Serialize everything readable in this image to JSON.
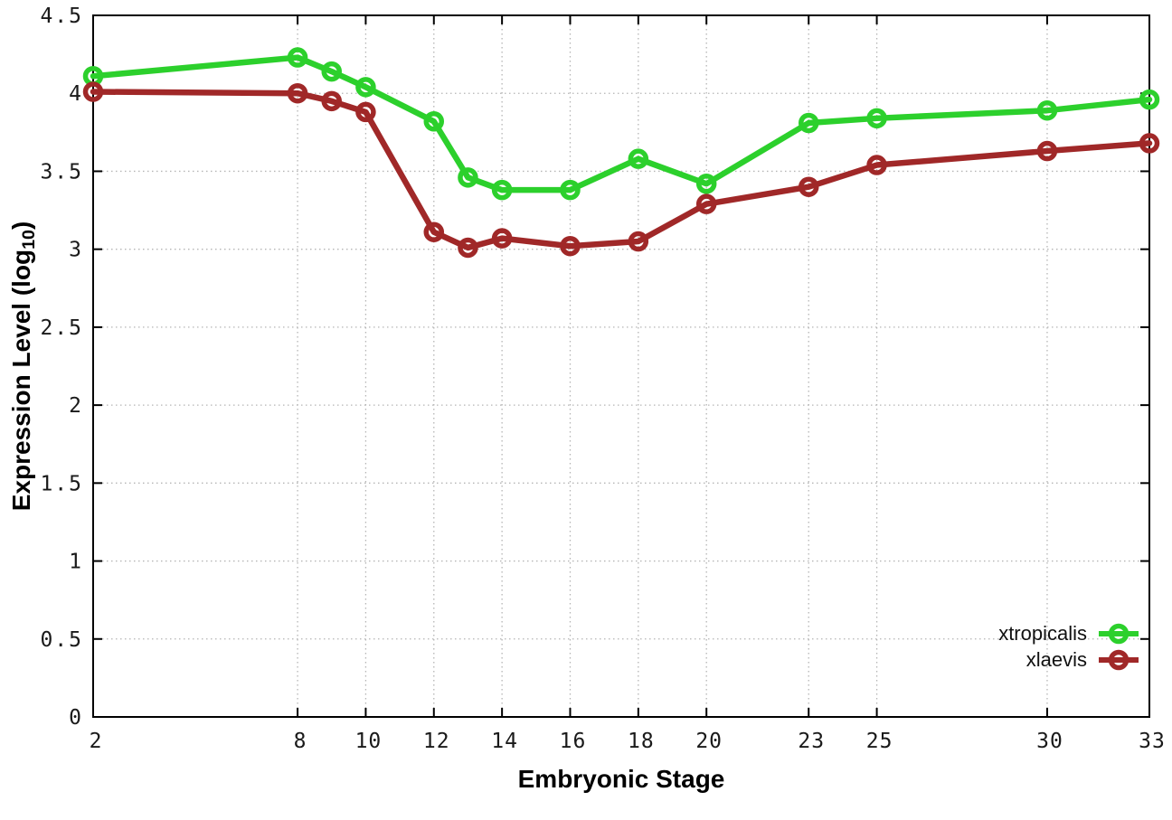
{
  "figure": {
    "background": "#ffffff",
    "border_color": "#000000",
    "grid_color": "#b5b5b5",
    "tick_label_color": "#1a1a1a"
  },
  "chart_data": {
    "type": "line",
    "title": "",
    "xlabel": "Embryonic Stage",
    "ylabel": "Expression Level (log10)",
    "ylabel_parts": {
      "main": "Expression Level (log",
      "sub": "10",
      "close": ")"
    },
    "xlim": [
      2,
      33
    ],
    "ylim": [
      0,
      4.5
    ],
    "grid": true,
    "legend_position": "bottom-right",
    "x": [
      2,
      8,
      9,
      10,
      12,
      13,
      14,
      16,
      18,
      20,
      23,
      25,
      30,
      33
    ],
    "xticks": [
      2,
      8,
      10,
      12,
      14,
      16,
      18,
      20,
      23,
      25,
      30,
      33
    ],
    "xtick_labels": [
      "2",
      "8",
      "10",
      "12",
      "14",
      "16",
      "18",
      "20",
      "23",
      "25",
      "30",
      "33"
    ],
    "yticks": [
      0,
      0.5,
      1,
      1.5,
      2,
      2.5,
      3,
      3.5,
      4,
      4.5
    ],
    "ytick_labels": [
      "0",
      "0.5",
      "1",
      "1.5",
      "2",
      "2.5",
      "3",
      "3.5",
      "4",
      "4.5"
    ],
    "series": [
      {
        "name": "xtropicalis",
        "color": "#2cd02c",
        "marker": "open-circle",
        "values": [
          4.11,
          4.23,
          4.14,
          4.04,
          3.82,
          3.46,
          3.38,
          3.38,
          3.58,
          3.42,
          3.81,
          3.84,
          3.89,
          3.96
        ]
      },
      {
        "name": "xlaevis",
        "color": "#a02828",
        "marker": "open-circle",
        "values": [
          4.01,
          4.0,
          3.95,
          3.88,
          3.11,
          3.01,
          3.07,
          3.02,
          3.05,
          3.29,
          3.4,
          3.54,
          3.63,
          3.68
        ]
      }
    ]
  }
}
